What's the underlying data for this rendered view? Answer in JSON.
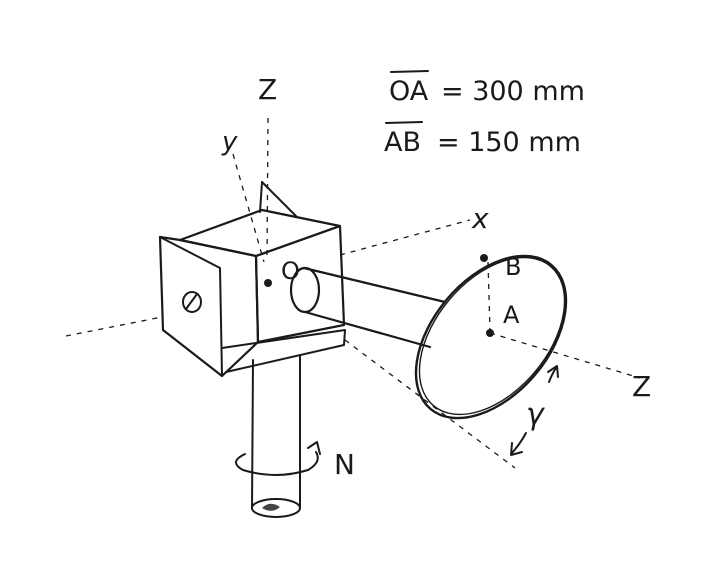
{
  "diagram": {
    "given": {
      "oa": {
        "segment": "OA",
        "value": "= 300 mm"
      },
      "ab": {
        "segment": "AB",
        "value": "= 150 mm"
      }
    },
    "axis_labels": {
      "z_vertical": "Z",
      "y": "y",
      "x": "x",
      "z_disk": "Z"
    },
    "point_labels": {
      "origin": "O",
      "center": "A",
      "rim": "B"
    },
    "rate_labels": {
      "spin": "N",
      "tilt": "γ"
    }
  },
  "colors": {
    "ink": "#1a1a1a",
    "paper": "#ffffff"
  }
}
